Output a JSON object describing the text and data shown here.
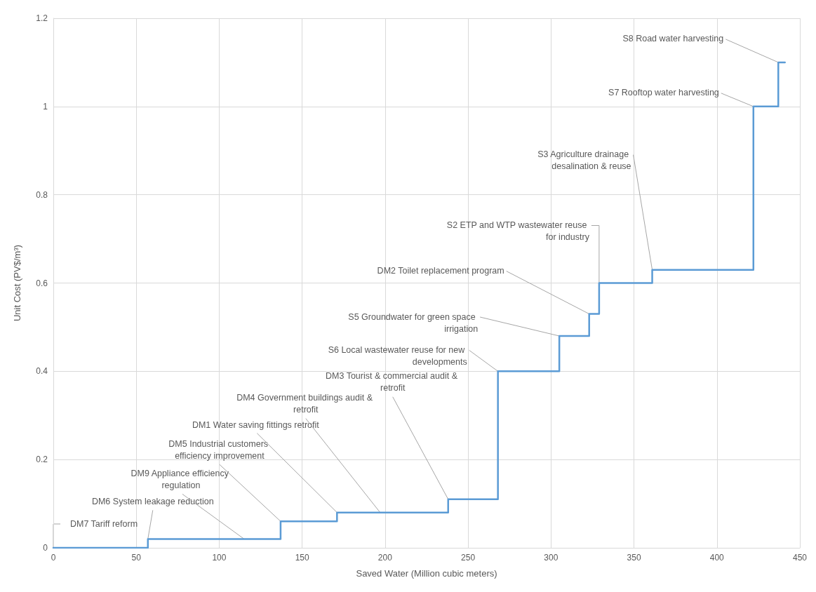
{
  "chart_data": {
    "type": "step",
    "xlabel": "Saved Water (Million cubic meters)",
    "ylabel": "Unit Cost (PV$/m³)",
    "x": [
      0,
      57,
      137,
      171,
      238,
      268,
      305,
      323,
      329,
      361,
      422,
      437,
      441
    ],
    "series": [
      {
        "color": "#5b9bd5",
        "values": [
          0,
          0.02,
          0.06,
          0.08,
          0.11,
          0.4,
          0.48,
          0.53,
          0.6,
          0.63,
          1.0,
          1.1,
          1.1
        ]
      }
    ],
    "xlim": [
      0,
      450
    ],
    "xticks": [
      0,
      50,
      100,
      150,
      200,
      250,
      300,
      350,
      400,
      450
    ],
    "ylim": [
      0,
      1.2
    ],
    "yticks": [
      0,
      0.2,
      0.4,
      0.6,
      0.8,
      1,
      1.2
    ],
    "grid": true,
    "marker": "none",
    "line_style": "solid",
    "annotations": [
      {
        "text": "DM7 Tariff reform",
        "x": 0,
        "y": 0
      },
      {
        "text": "DM6 System leakage reduction",
        "x": 57,
        "y": 0.02
      },
      {
        "text": "DM9 Appliance efficiency regulation",
        "x": 115,
        "y": 0.02
      },
      {
        "text": "DM5 Industrial customers efficiency improvement",
        "x": 137,
        "y": 0.06
      },
      {
        "text": "DM1 Water saving fittings retrofit",
        "x": 171,
        "y": 0.08
      },
      {
        "text": "DM4 Government buildings audit & retrofit",
        "x": 197,
        "y": 0.08
      },
      {
        "text": "DM3 Tourist & commercial audit & retrofit",
        "x": 238,
        "y": 0.11
      },
      {
        "text": "S6 Local wastewater reuse for new developments",
        "x": 268,
        "y": 0.4
      },
      {
        "text": "S5 Groundwater for green space irrigation",
        "x": 305,
        "y": 0.48
      },
      {
        "text": "DM2 Toilet replacement program",
        "x": 323,
        "y": 0.53
      },
      {
        "text": "S2 ETP and WTP wastewater reuse for industry",
        "x": 329,
        "y": 0.6
      },
      {
        "text": "S3 Agriculture drainage desalination & reuse",
        "x": 361,
        "y": 0.63
      },
      {
        "text": "S7 Rooftop water harvesting",
        "x": 422,
        "y": 1.0
      },
      {
        "text": "S8 Road water harvesting",
        "x": 437,
        "y": 1.1
      }
    ]
  }
}
